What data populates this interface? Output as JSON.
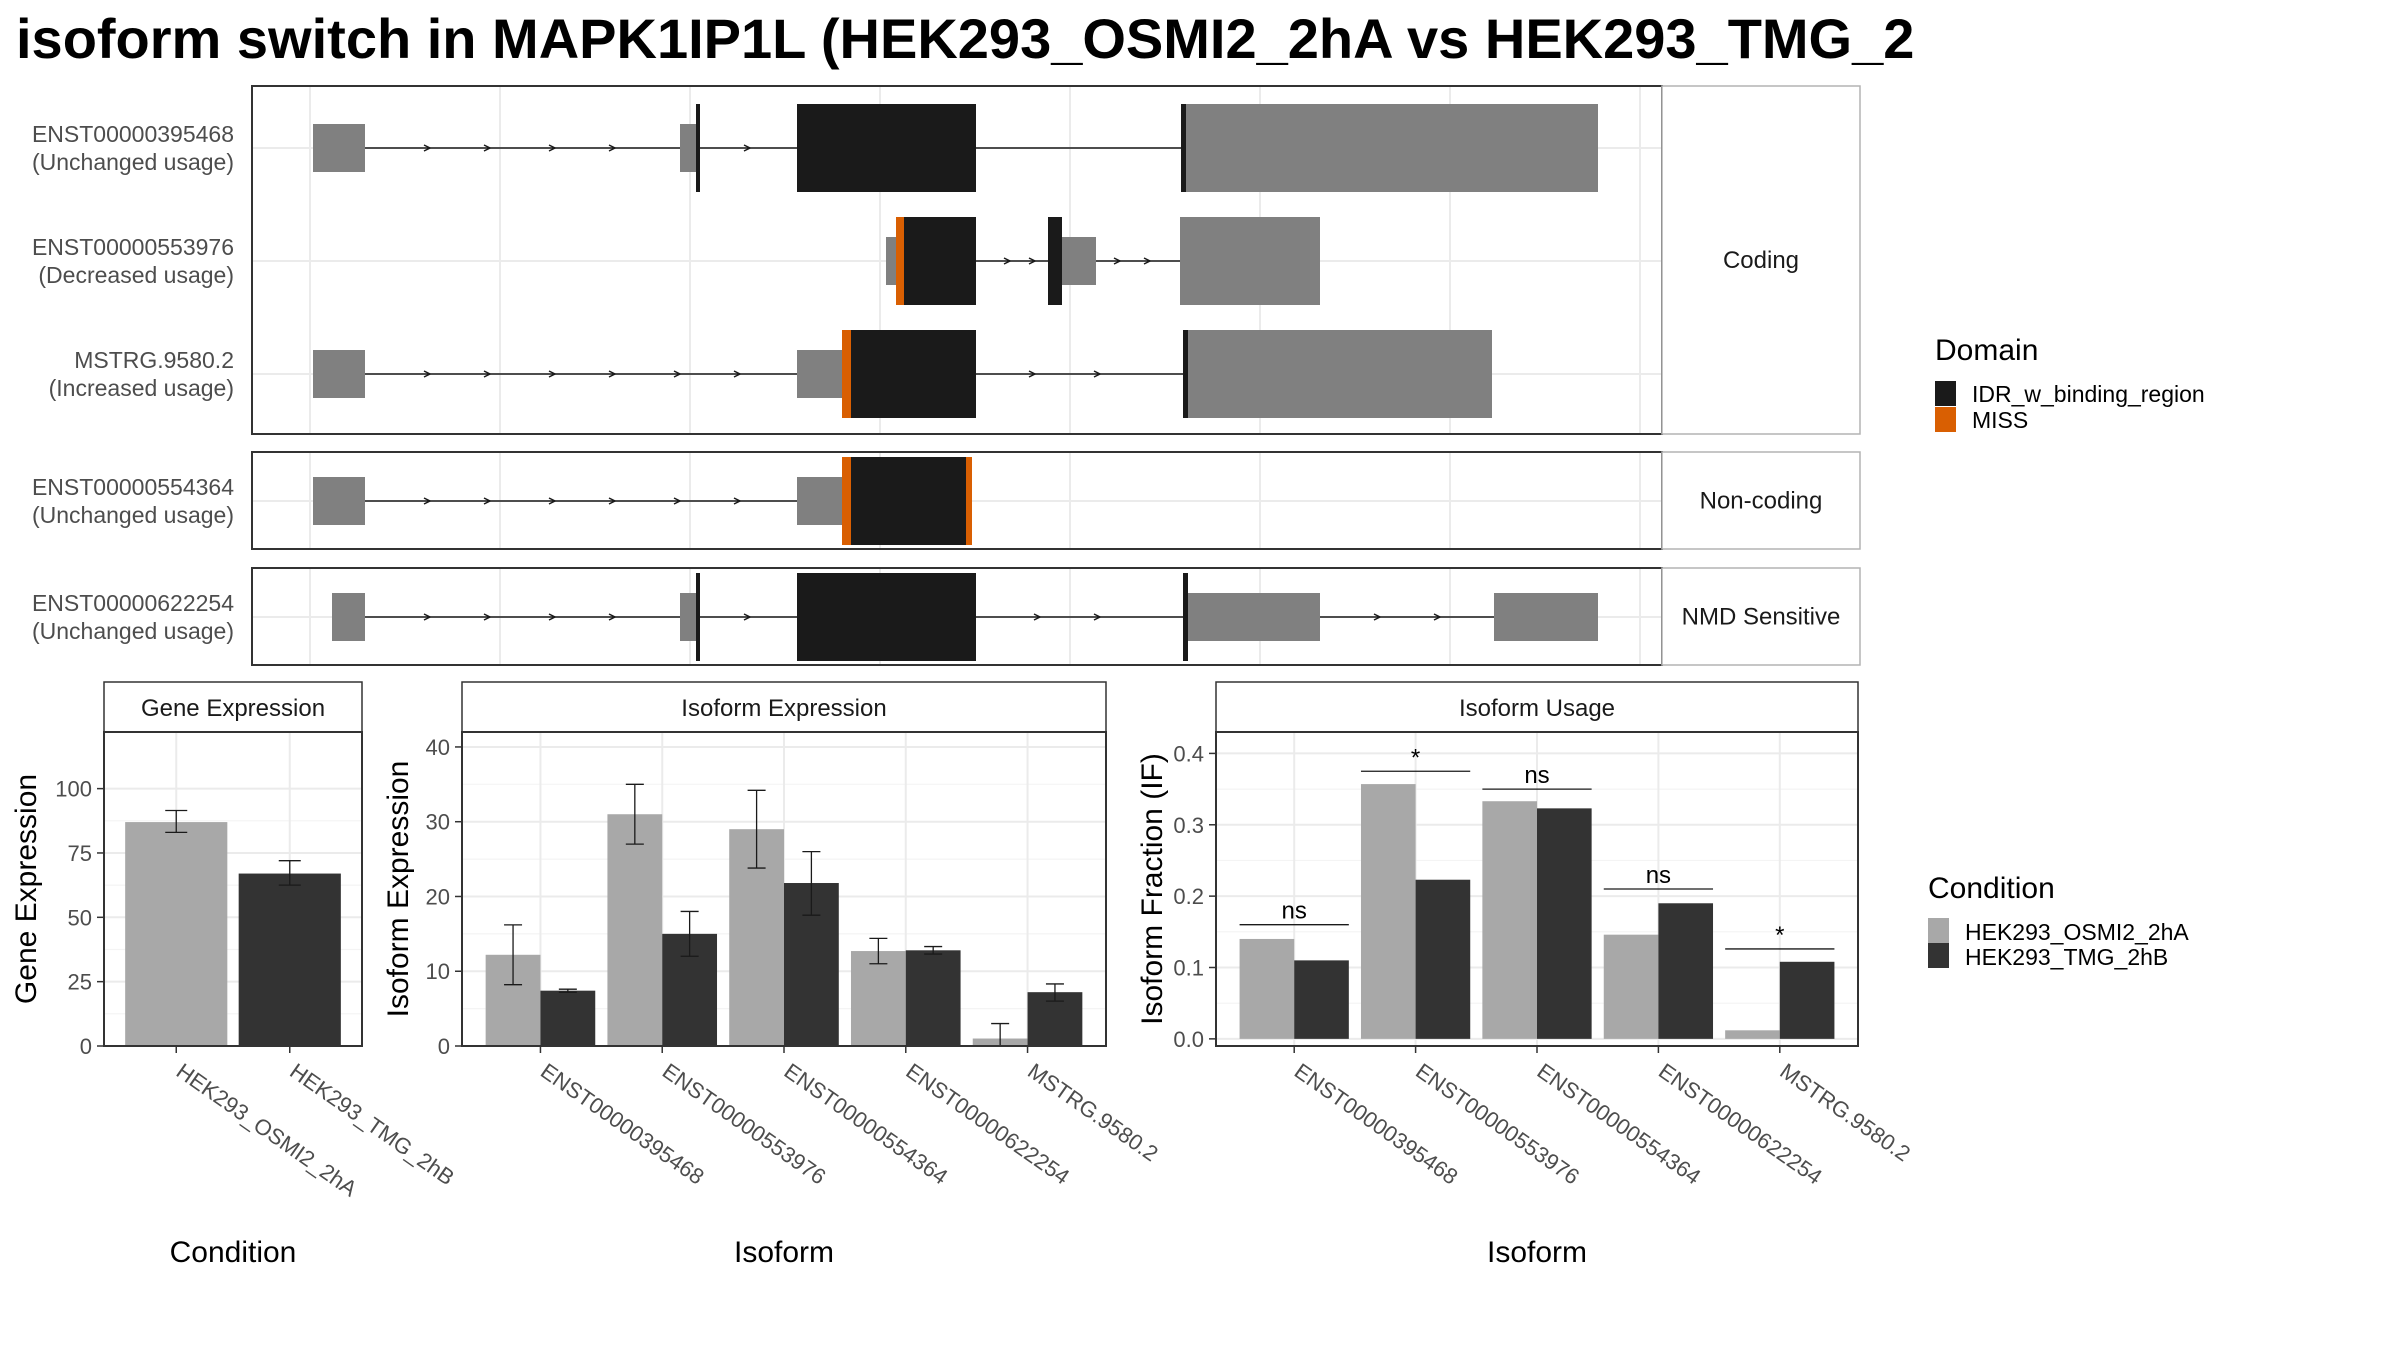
{
  "title": "isoform switch in MAPK1IP1L (HEK293_OSMI2_2hA vs HEK293_TMG_2",
  "colors": {
    "exon": "#808080",
    "idr": "#1a1a1a",
    "miss": "#d95f02",
    "cond1": "#a8a8a8",
    "cond2": "#333333"
  },
  "structure": {
    "panels": [
      {
        "facet": "Coding",
        "transcripts": [
          {
            "id": "ENST00000395468",
            "usage": "(Unchanged usage)"
          },
          {
            "id": "ENST00000553976",
            "usage": "(Decreased usage)"
          },
          {
            "id": "MSTRG.9580.2",
            "usage": "(Increased usage)"
          }
        ]
      },
      {
        "facet": "Non-coding",
        "transcripts": [
          {
            "id": "ENST00000554364",
            "usage": "(Unchanged usage)"
          }
        ]
      },
      {
        "facet": "NMD Sensitive",
        "transcripts": [
          {
            "id": "ENST00000622254",
            "usage": "(Unchanged usage)"
          }
        ]
      }
    ]
  },
  "legend_domain": {
    "title": "Domain",
    "items": [
      {
        "label": "IDR_w_binding_region",
        "color": "#1a1a1a"
      },
      {
        "label": "MISS",
        "color": "#d95f02"
      }
    ]
  },
  "legend_condition": {
    "title": "Condition",
    "items": [
      {
        "label": "HEK293_OSMI2_2hA",
        "color": "#a8a8a8"
      },
      {
        "label": "HEK293_TMG_2hB",
        "color": "#333333"
      }
    ]
  },
  "chart_data": [
    {
      "type": "bar",
      "title": "Gene Expression",
      "xlabel": "Condition",
      "ylabel": "Gene Expression",
      "categories": [
        "HEK293_OSMI2_2hA",
        "HEK293_TMG_2hB"
      ],
      "values": [
        87,
        67
      ],
      "errors": [
        [
          83,
          91.5
        ],
        [
          62.5,
          72
        ]
      ],
      "ylim": [
        0,
        122
      ],
      "yticks": [
        0,
        25,
        50,
        75,
        100
      ]
    },
    {
      "type": "bar",
      "title": "Isoform Expression",
      "xlabel": "Isoform",
      "ylabel": "Isoform Expression",
      "categories": [
        "ENST00000395468",
        "ENST00000553976",
        "ENST00000554364",
        "ENST00000622254",
        "MSTRG.9580.2"
      ],
      "series": [
        {
          "name": "HEK293_OSMI2_2hA",
          "values": [
            12.2,
            31.0,
            29.0,
            12.7,
            1.0
          ],
          "errors": [
            [
              8.2,
              16.2
            ],
            [
              27.0,
              35.0
            ],
            [
              23.8,
              34.2
            ],
            [
              11.0,
              14.4
            ],
            [
              0,
              3.0
            ]
          ]
        },
        {
          "name": "HEK293_TMG_2hB",
          "values": [
            7.4,
            15.0,
            21.8,
            12.8,
            7.2
          ],
          "errors": [
            [
              7.2,
              7.6
            ],
            [
              12.0,
              18.0
            ],
            [
              17.5,
              26.0
            ],
            [
              12.3,
              13.3
            ],
            [
              6.0,
              8.3
            ]
          ]
        }
      ],
      "ylim": [
        0,
        42
      ],
      "yticks": [
        0,
        10,
        20,
        30,
        40
      ]
    },
    {
      "type": "bar",
      "title": "Isoform Usage",
      "xlabel": "Isoform",
      "ylabel": "Isoform Fraction (IF)",
      "categories": [
        "ENST00000395468",
        "ENST00000553976",
        "ENST00000554364",
        "ENST00000622254",
        "MSTRG.9580.2"
      ],
      "series": [
        {
          "name": "HEK293_OSMI2_2hA",
          "values": [
            0.14,
            0.357,
            0.333,
            0.146,
            0.012
          ]
        },
        {
          "name": "HEK293_TMG_2hB",
          "values": [
            0.11,
            0.223,
            0.323,
            0.19,
            0.108
          ]
        }
      ],
      "significance": [
        "ns",
        "*",
        "ns",
        "ns",
        "*"
      ],
      "significance_y": [
        0.16,
        0.375,
        0.35,
        0.21,
        0.126
      ],
      "ylim": [
        -0.01,
        0.43
      ],
      "yticks": [
        0.0,
        0.1,
        0.2,
        0.3,
        0.4
      ],
      "yticklabels": [
        "0.0",
        "0.1",
        "0.2",
        "0.3",
        "0.4"
      ]
    }
  ]
}
